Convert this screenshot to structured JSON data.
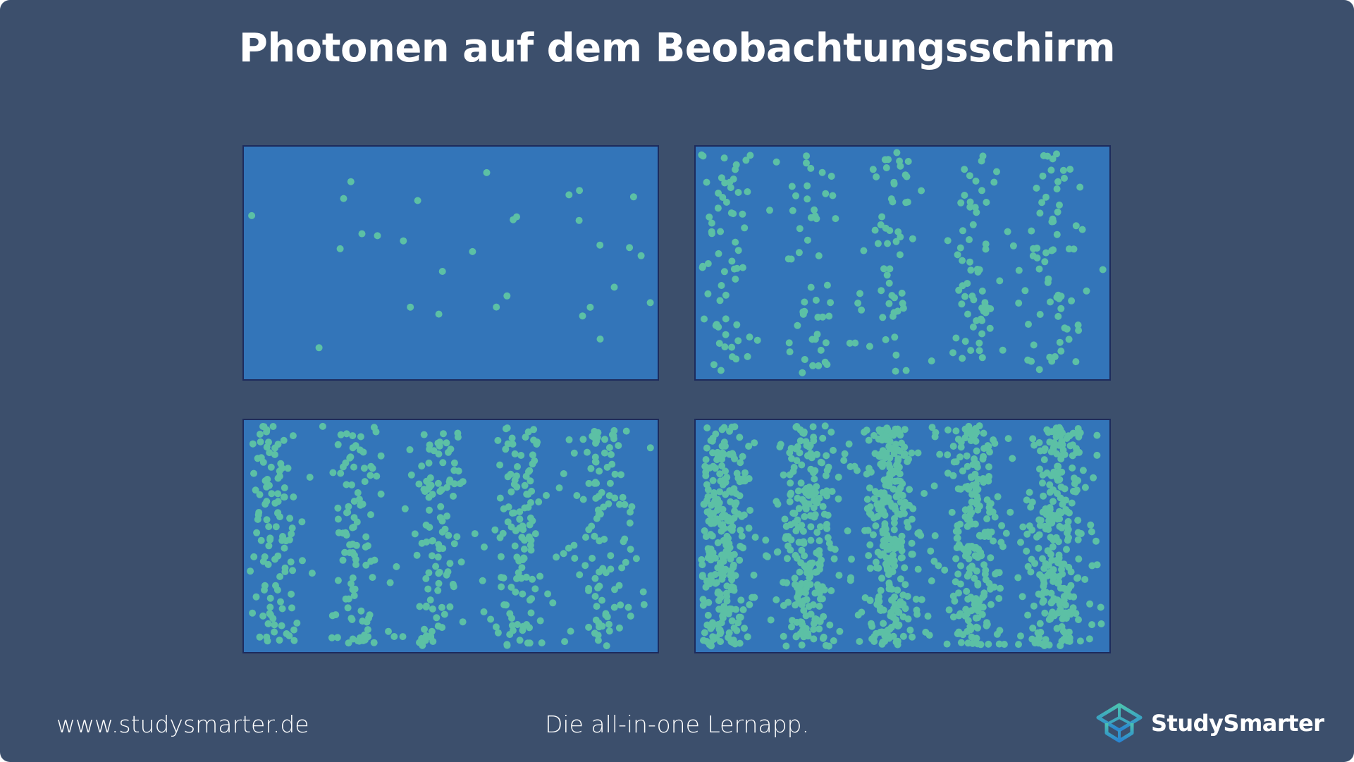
{
  "title": "Photonen auf dem Beobachtungsschirm",
  "panels": [
    {
      "photons": 30,
      "fringes": 5
    },
    {
      "photons": 300,
      "fringes": 5
    },
    {
      "photons": 550,
      "fringes": 5
    },
    {
      "photons": 1300,
      "fringes": 5
    }
  ],
  "colors": {
    "background": "#3c4f6c",
    "screen": "#3375b9",
    "photon": "#5cc0a5",
    "border": "#1d2b5c"
  },
  "footer": {
    "website": "www.studysmarter.de",
    "tagline": "Die all-in-one Lernapp.",
    "brand": "StudySmarter"
  }
}
